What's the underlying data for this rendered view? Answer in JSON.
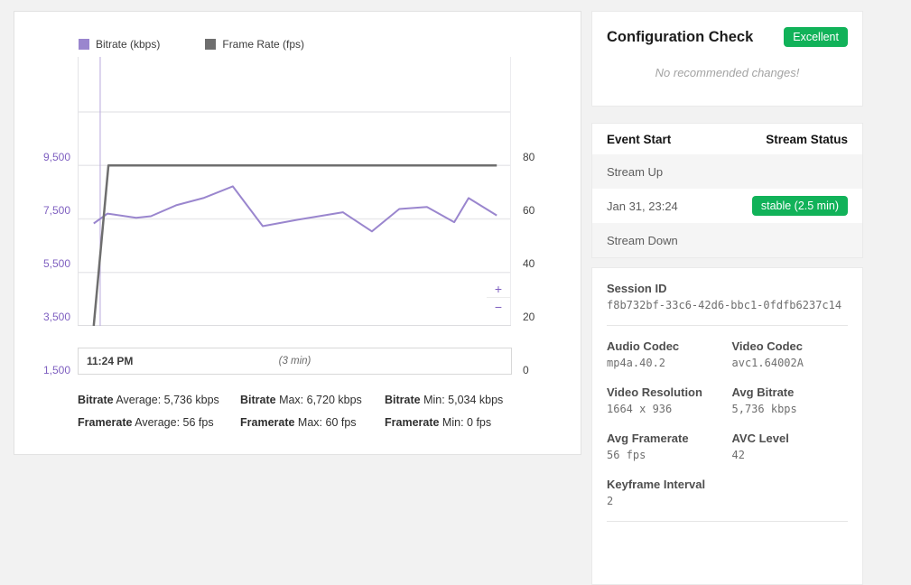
{
  "colors": {
    "badge_green": "#11b259",
    "axis_purple": "#7e5fc0",
    "bitrate_purple": "#9a86ce",
    "framerate_gray": "#6e6e6e",
    "marker_purple": "#b9a8dd"
  },
  "chart_card": {
    "y_left_ticks": [
      "9,500",
      "7,500",
      "5,500",
      "3,500",
      "1,500"
    ],
    "y_right_ticks": [
      "80",
      "60",
      "40",
      "20",
      "0"
    ],
    "zoom_in": "+",
    "zoom_out": "−",
    "range": {
      "start": "11:24 PM",
      "span": "(3 min)"
    },
    "stats": [
      {
        "term": "Bitrate",
        "text": " Average: 5,736 kbps"
      },
      {
        "term": "Bitrate",
        "text": " Max: 6,720 kbps"
      },
      {
        "term": "Bitrate",
        "text": " Min: 5,034 kbps"
      },
      {
        "term": "Framerate",
        "text": " Average: 56 fps"
      },
      {
        "term": "Framerate",
        "text": " Max: 60 fps"
      },
      {
        "term": "Framerate",
        "text": " Min: 0 fps"
      }
    ]
  },
  "chart_data": {
    "type": "line",
    "title": "Stream bitrate and frame rate over time",
    "x_window": "3 min starting 11:24 PM",
    "legend_position": "top",
    "grid": true,
    "left_axis": {
      "label": "Bitrate (kbps)",
      "ticks": [
        1500,
        3500,
        5500,
        7500,
        9500
      ],
      "min": 1500,
      "tick_step": 2000
    },
    "right_axis": {
      "label": "Frame Rate (fps)",
      "ticks": [
        0,
        20,
        40,
        60,
        80
      ],
      "min": 0,
      "tick_step": 20
    },
    "marker_x": 0.052,
    "series": [
      {
        "name": "Bitrate (kbps)",
        "axis": "left",
        "color": "#9a86ce",
        "points": [
          [
            0.037,
            5330
          ],
          [
            0.069,
            5700
          ],
          [
            0.135,
            5540
          ],
          [
            0.169,
            5600
          ],
          [
            0.227,
            6010
          ],
          [
            0.29,
            6280
          ],
          [
            0.358,
            6720
          ],
          [
            0.427,
            5230
          ],
          [
            0.508,
            5470
          ],
          [
            0.612,
            5750
          ],
          [
            0.679,
            5034
          ],
          [
            0.742,
            5870
          ],
          [
            0.806,
            5950
          ],
          [
            0.869,
            5380
          ],
          [
            0.902,
            6280
          ],
          [
            0.967,
            5630
          ]
        ],
        "average": 5736,
        "max": 6720,
        "min": 5034
      },
      {
        "name": "Frame Rate (fps)",
        "axis": "right",
        "color": "#6e6e6e",
        "points": [
          [
            0.037,
            0
          ],
          [
            0.071,
            60
          ],
          [
            0.967,
            60
          ]
        ],
        "average": 56,
        "max": 60,
        "min": 0
      }
    ]
  },
  "config_check": {
    "title": "Configuration Check",
    "badge": "Excellent",
    "message": "No recommended changes!"
  },
  "events": {
    "headers": [
      "Event Start",
      "Stream Status"
    ],
    "rows": [
      {
        "label": "Stream Up",
        "badge": ""
      },
      {
        "label": "Jan 31, 23:24",
        "badge": "stable (2.5 min)"
      },
      {
        "label": "Stream Down",
        "badge": ""
      }
    ]
  },
  "session": {
    "session_id": {
      "label": "Session ID",
      "value": "f8b732bf-33c6-42d6-bbc1-0fdfb6237c14"
    },
    "fields": [
      {
        "label": "Audio Codec",
        "value": "mp4a.40.2"
      },
      {
        "label": "Video Codec",
        "value": "avc1.64002A"
      },
      {
        "label": "Video Resolution",
        "value": "1664 x 936"
      },
      {
        "label": "Avg Bitrate",
        "value": "5,736 kbps"
      },
      {
        "label": "Avg Framerate",
        "value": "56 fps"
      },
      {
        "label": "AVC Level",
        "value": "42"
      },
      {
        "label": "Keyframe Interval",
        "value": "2"
      }
    ]
  }
}
